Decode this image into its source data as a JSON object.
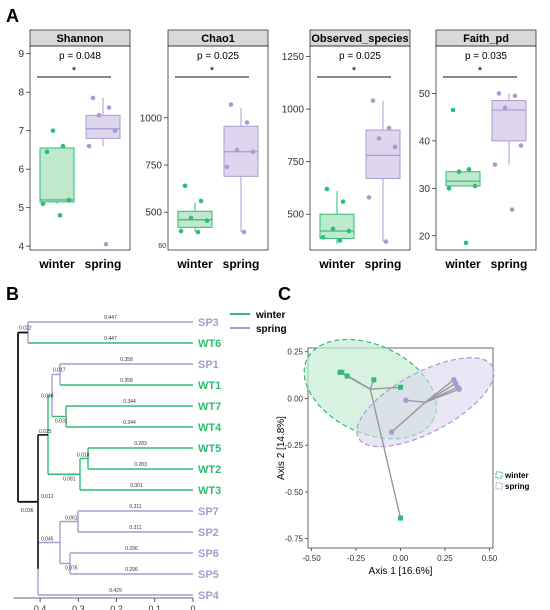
{
  "panels": {
    "A": "A",
    "B": "B",
    "C": "C"
  },
  "colors": {
    "winter": "#2ebd72",
    "spring": "#a99bd0",
    "winter_fill": "#bfe8cd",
    "spring_fill": "#ddd6ee",
    "strip": "#d9d9d9"
  },
  "chart_data": [
    {
      "type": "box",
      "title": "Shannon",
      "pvalue": "p = 0.048",
      "significance": "*",
      "categories": [
        "winter",
        "spring"
      ],
      "ylim": [
        3.9,
        9.2
      ],
      "yticks": [
        4,
        5,
        6,
        7,
        8,
        9
      ],
      "boxes": [
        {
          "group": "winter",
          "q1": 5.15,
          "median": 5.2,
          "q3": 6.55,
          "whisker_low": 5.1,
          "whisker_high": 6.55
        },
        {
          "group": "spring",
          "q1": 6.8,
          "median": 7.05,
          "q3": 7.4,
          "whisker_low": 6.6,
          "whisker_high": 7.85
        }
      ],
      "points": {
        "winter": [
          6.45,
          6.6,
          7.0,
          5.2,
          5.1,
          4.8
        ],
        "spring": [
          7.85,
          7.6,
          7.4,
          7.0,
          6.6,
          4.05
        ]
      }
    },
    {
      "type": "box",
      "title": "Chao1",
      "pvalue": "p = 0.025",
      "significance": "*",
      "categories": [
        "winter",
        "spring"
      ],
      "ylim": [
        300,
        1380
      ],
      "yticks": [
        500,
        750,
        1000
      ],
      "bottom_label": "60",
      "boxes": [
        {
          "group": "winter",
          "q1": 420,
          "median": 460,
          "q3": 505,
          "whisker_low": 395,
          "whisker_high": 550
        },
        {
          "group": "spring",
          "q1": 690,
          "median": 820,
          "q3": 955,
          "whisker_low": 395,
          "whisker_high": 1050
        }
      ],
      "points": {
        "winter": [
          640,
          560,
          470,
          455,
          400,
          395
        ],
        "spring": [
          1070,
          975,
          830,
          820,
          740,
          395
        ]
      }
    },
    {
      "type": "box",
      "title": "Observed_species",
      "pvalue": "p = 0.025",
      "significance": "*",
      "categories": [
        "winter",
        "spring"
      ],
      "ylim": [
        330,
        1300
      ],
      "yticks": [
        500,
        750,
        1000,
        1250
      ],
      "boxes": [
        {
          "group": "winter",
          "q1": 385,
          "median": 420,
          "q3": 500,
          "whisker_low": 360,
          "whisker_high": 610
        },
        {
          "group": "spring",
          "q1": 670,
          "median": 780,
          "q3": 900,
          "whisker_low": 370,
          "whisker_high": 1040
        }
      ],
      "points": {
        "winter": [
          620,
          560,
          430,
          420,
          390,
          375
        ],
        "spring": [
          1040,
          910,
          860,
          820,
          580,
          370
        ]
      }
    },
    {
      "type": "box",
      "title": "Faith_pd",
      "pvalue": "p = 0.035",
      "significance": "*",
      "categories": [
        "winter",
        "spring"
      ],
      "ylim": [
        17,
        60
      ],
      "yticks": [
        20,
        30,
        40,
        50
      ],
      "boxes": [
        {
          "group": "winter",
          "q1": 30.5,
          "median": 31.5,
          "q3": 33.5,
          "whisker_low": 30.5,
          "whisker_high": 33.5
        },
        {
          "group": "spring",
          "q1": 40,
          "median": 46.5,
          "q3": 48.5,
          "whisker_low": 35,
          "whisker_high": 50
        }
      ],
      "points": {
        "winter": [
          46.5,
          34.0,
          33.5,
          30.5,
          30.0,
          18.5
        ],
        "spring": [
          50,
          49.5,
          47,
          39,
          35,
          25.5
        ]
      }
    },
    {
      "type": "dendrogram",
      "legend": [
        {
          "name": "winter",
          "color": "winter"
        },
        {
          "name": "spring",
          "color": "spring"
        }
      ],
      "axis_ticks": [
        0.4,
        0.3,
        0.2,
        0.1,
        0
      ],
      "xlim": [
        0.47,
        0
      ],
      "leaves": [
        {
          "label": "SP3",
          "group": "spring",
          "branch": "0.447"
        },
        {
          "label": "WT6",
          "group": "winter",
          "branch": "0.447"
        },
        {
          "label": "SP1",
          "group": "spring",
          "branch": "0.358"
        },
        {
          "label": "WT1",
          "group": "winter",
          "branch": "0.358"
        },
        {
          "label": "WT7",
          "group": "winter",
          "branch": "0.344"
        },
        {
          "label": "WT4",
          "group": "winter",
          "branch": "0.344"
        },
        {
          "label": "WT5",
          "group": "winter",
          "branch": "0.283"
        },
        {
          "label": "WT2",
          "group": "winter",
          "branch": "0.283"
        },
        {
          "label": "WT3",
          "group": "winter",
          "branch": "0.301"
        },
        {
          "label": "SP7",
          "group": "spring",
          "branch": "0.311"
        },
        {
          "label": "SP2",
          "group": "spring",
          "branch": "0.311"
        },
        {
          "label": "SP6",
          "group": "spring",
          "branch": "0.296"
        },
        {
          "label": "SP5",
          "group": "spring",
          "branch": "0.296"
        },
        {
          "label": "SP4",
          "group": "spring",
          "branch": "0.429"
        }
      ],
      "node_labels": [
        "0.022",
        "0.017",
        "0.018",
        "0.031",
        "0.025",
        "0.018",
        "0.081",
        "0.012",
        "0.061",
        "0.045",
        "0.076",
        "0.036"
      ]
    },
    {
      "type": "scatter",
      "xlabel": "Axis 1 [16.6%]",
      "ylabel": "Axis 2 [14.8%]",
      "xlim": [
        -0.52,
        0.52
      ],
      "ylim": [
        -0.8,
        0.27
      ],
      "xticks": [
        "-0.50",
        "-0.25",
        "0.00",
        "0.25",
        "0.50"
      ],
      "yticks": [
        "0.25",
        "0.00",
        "-0.25",
        "-0.50",
        "-0.75"
      ],
      "legend": [
        {
          "name": "winter",
          "color": "winter"
        },
        {
          "name": "spring",
          "color": "spring"
        }
      ],
      "centroids": {
        "winter": [
          -0.17,
          0.05
        ],
        "spring": [
          0.14,
          -0.02
        ]
      },
      "series": [
        {
          "name": "winter",
          "points": [
            [
              -0.34,
              0.14
            ],
            [
              -0.33,
              0.14
            ],
            [
              -0.3,
              0.12
            ],
            [
              -0.15,
              0.1
            ],
            [
              0.0,
              0.06
            ],
            [
              0.0,
              -0.64
            ]
          ]
        },
        {
          "name": "spring",
          "points": [
            [
              0.3,
              0.1
            ],
            [
              0.31,
              0.08
            ],
            [
              0.32,
              0.06
            ],
            [
              0.33,
              0.05
            ],
            [
              0.03,
              -0.01
            ],
            [
              -0.05,
              -0.18
            ]
          ]
        }
      ]
    }
  ]
}
